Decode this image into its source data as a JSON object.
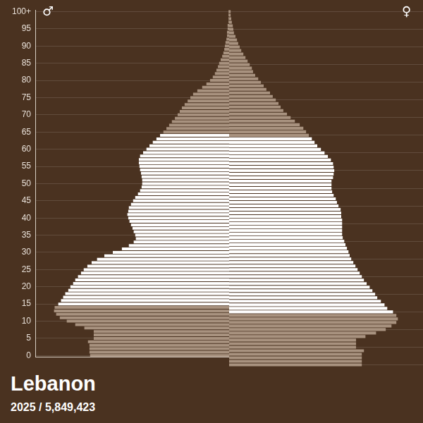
{
  "chart_data": {
    "type": "bar",
    "title": "Lebanon",
    "subtitle": "2025 / 5,849,423",
    "orientation": "horizontal",
    "grid": true,
    "tick_labels": "y",
    "xlim": [
      0,
      64000
    ],
    "categories": [
      "0",
      null,
      null,
      null,
      null,
      "5",
      null,
      null,
      null,
      null,
      "10",
      null,
      null,
      null,
      null,
      "15",
      null,
      null,
      null,
      null,
      "20",
      null,
      null,
      null,
      null,
      "25",
      null,
      null,
      null,
      null,
      "30",
      null,
      null,
      null,
      null,
      "35",
      null,
      null,
      null,
      null,
      "40",
      null,
      null,
      null,
      null,
      "45",
      null,
      null,
      null,
      null,
      "50",
      null,
      null,
      null,
      null,
      "55",
      null,
      null,
      null,
      null,
      "60",
      null,
      null,
      null,
      null,
      "65",
      null,
      null,
      null,
      null,
      "70",
      null,
      null,
      null,
      null,
      "75",
      null,
      null,
      null,
      null,
      "80",
      null,
      null,
      null,
      null,
      "85",
      null,
      null,
      null,
      null,
      "90",
      null,
      null,
      null,
      null,
      "95",
      null,
      null,
      null,
      null,
      "100+"
    ],
    "series": [
      {
        "name": "♂",
        "values": [
          45900,
          46100,
          46100,
          46100,
          46600,
          44700,
          44700,
          44700,
          47800,
          50800,
          53600,
          55900,
          57100,
          57800,
          57600,
          56400,
          55500,
          54800,
          54100,
          53100,
          52400,
          51500,
          50800,
          49900,
          48900,
          48000,
          46800,
          45400,
          43600,
          41200,
          38400,
          35400,
          33100,
          31500,
          30800,
          31000,
          31500,
          31900,
          32400,
          32900,
          33300,
          33600,
          33300,
          33100,
          32400,
          31700,
          31000,
          30100,
          29400,
          28900,
          28700,
          28700,
          28900,
          29100,
          29400,
          29600,
          29800,
          29800,
          29400,
          28400,
          27300,
          26300,
          25200,
          24000,
          22800,
          21700,
          20700,
          19800,
          18900,
          17900,
          17000,
          16300,
          15600,
          14700,
          13700,
          12800,
          11900,
          10500,
          8900,
          7500,
          6300,
          5400,
          4700,
          4200,
          3700,
          3300,
          2800,
          2300,
          1900,
          1600,
          1400,
          1200,
          900,
          700,
          700,
          500,
          500,
          200,
          200,
          200,
          200
        ],
        "colors": [
          "#a8927f",
          "#a8927f",
          "#a8927f",
          "#a8927f",
          "#a8927f",
          "#a8927f",
          "#a8927f",
          "#a8927f",
          "#a8927f",
          "#a8927f",
          "#a8927f",
          "#a8927f",
          "#a8927f",
          "#a8927f",
          "#a8927f",
          "#ffffff",
          "#ffffff",
          "#ffffff",
          "#ffffff",
          "#ffffff",
          "#ffffff",
          "#ffffff",
          "#ffffff",
          "#ffffff",
          "#ffffff",
          "#ffffff",
          "#ffffff",
          "#ffffff",
          "#ffffff",
          "#ffffff",
          "#ffffff",
          "#ffffff",
          "#ffffff",
          "#ffffff",
          "#ffffff",
          "#ffffff",
          "#ffffff",
          "#ffffff",
          "#ffffff",
          "#ffffff",
          "#ffffff",
          "#ffffff",
          "#ffffff",
          "#ffffff",
          "#ffffff",
          "#ffffff",
          "#ffffff",
          "#ffffff",
          "#ffffff",
          "#ffffff",
          "#ffffff",
          "#ffffff",
          "#ffffff",
          "#ffffff",
          "#ffffff",
          "#ffffff",
          "#ffffff",
          "#ffffff",
          "#ffffff",
          "#ffffff",
          "#ffffff",
          "#ffffff",
          "#ffffff",
          "#ffffff",
          "#ffffff",
          "#a8927f",
          "#a8927f",
          "#a8927f",
          "#a8927f",
          "#a8927f",
          "#a8927f",
          "#a8927f",
          "#a8927f",
          "#a8927f",
          "#a8927f",
          "#a8927f",
          "#a8927f",
          "#a8927f",
          "#a8927f",
          "#a8927f",
          "#a8927f",
          "#a8927f",
          "#a8927f",
          "#a8927f",
          "#a8927f",
          "#a8927f",
          "#a8927f",
          "#a8927f",
          "#a8927f",
          "#a8927f",
          "#a8927f",
          "#a8927f",
          "#a8927f",
          "#a8927f",
          "#a8927f",
          "#a8927f",
          "#a8927f",
          "#a8927f",
          "#a8927f",
          "#a8927f",
          "#a8927f"
        ]
      },
      {
        "name": "♀",
        "values": [
          43800,
          43800,
          43800,
          43800,
          44500,
          41900,
          41900,
          41900,
          45000,
          48500,
          51700,
          53600,
          55200,
          55700,
          55200,
          54100,
          52200,
          51300,
          50100,
          48900,
          48200,
          47300,
          46400,
          45400,
          44500,
          43800,
          43100,
          42400,
          41700,
          41000,
          40300,
          39800,
          39400,
          38900,
          38400,
          38000,
          37500,
          37300,
          37300,
          37300,
          37300,
          37300,
          37000,
          37000,
          36800,
          36100,
          35600,
          35200,
          34500,
          34000,
          33800,
          33800,
          33800,
          34300,
          34500,
          34700,
          34500,
          34300,
          33600,
          32600,
          31500,
          30300,
          29100,
          28200,
          27300,
          26300,
          25400,
          24500,
          23300,
          21700,
          20300,
          19100,
          17900,
          17000,
          16300,
          15400,
          14400,
          13500,
          12300,
          11400,
          10500,
          9600,
          8600,
          7900,
          7500,
          6800,
          6100,
          5400,
          4700,
          4000,
          3500,
          3000,
          2600,
          2100,
          1600,
          1400,
          1200,
          900,
          700,
          500,
          500
        ],
        "colors": [
          "#a8927f",
          "#a8927f",
          "#a8927f",
          "#a8927f",
          "#a8927f",
          "#a8927f",
          "#a8927f",
          "#a8927f",
          "#a8927f",
          "#a8927f",
          "#a8927f",
          "#a8927f",
          "#a8927f",
          "#a8927f",
          "#a8927f",
          "#ffffff",
          "#ffffff",
          "#ffffff",
          "#ffffff",
          "#ffffff",
          "#ffffff",
          "#ffffff",
          "#ffffff",
          "#ffffff",
          "#ffffff",
          "#ffffff",
          "#ffffff",
          "#ffffff",
          "#ffffff",
          "#ffffff",
          "#ffffff",
          "#ffffff",
          "#ffffff",
          "#ffffff",
          "#ffffff",
          "#ffffff",
          "#ffffff",
          "#ffffff",
          "#ffffff",
          "#ffffff",
          "#ffffff",
          "#ffffff",
          "#ffffff",
          "#ffffff",
          "#ffffff",
          "#ffffff",
          "#ffffff",
          "#ffffff",
          "#ffffff",
          "#ffffff",
          "#ffffff",
          "#ffffff",
          "#ffffff",
          "#ffffff",
          "#ffffff",
          "#ffffff",
          "#ffffff",
          "#ffffff",
          "#ffffff",
          "#ffffff",
          "#ffffff",
          "#ffffff",
          "#ffffff",
          "#ffffff",
          "#ffffff",
          "#a8927f",
          "#a8927f",
          "#a8927f",
          "#a8927f",
          "#a8927f",
          "#a8927f",
          "#a8927f",
          "#a8927f",
          "#a8927f",
          "#a8927f",
          "#a8927f",
          "#a8927f",
          "#a8927f",
          "#a8927f",
          "#a8927f",
          "#a8927f",
          "#a8927f",
          "#a8927f",
          "#a8927f",
          "#a8927f",
          "#a8927f",
          "#a8927f",
          "#a8927f",
          "#a8927f",
          "#a8927f",
          "#a8927f",
          "#a8927f",
          "#a8927f",
          "#a8927f",
          "#a8927f",
          "#a8927f",
          "#a8927f",
          "#a8927f",
          "#a8927f",
          "#a8927f",
          "#a8927f"
        ]
      }
    ]
  }
}
